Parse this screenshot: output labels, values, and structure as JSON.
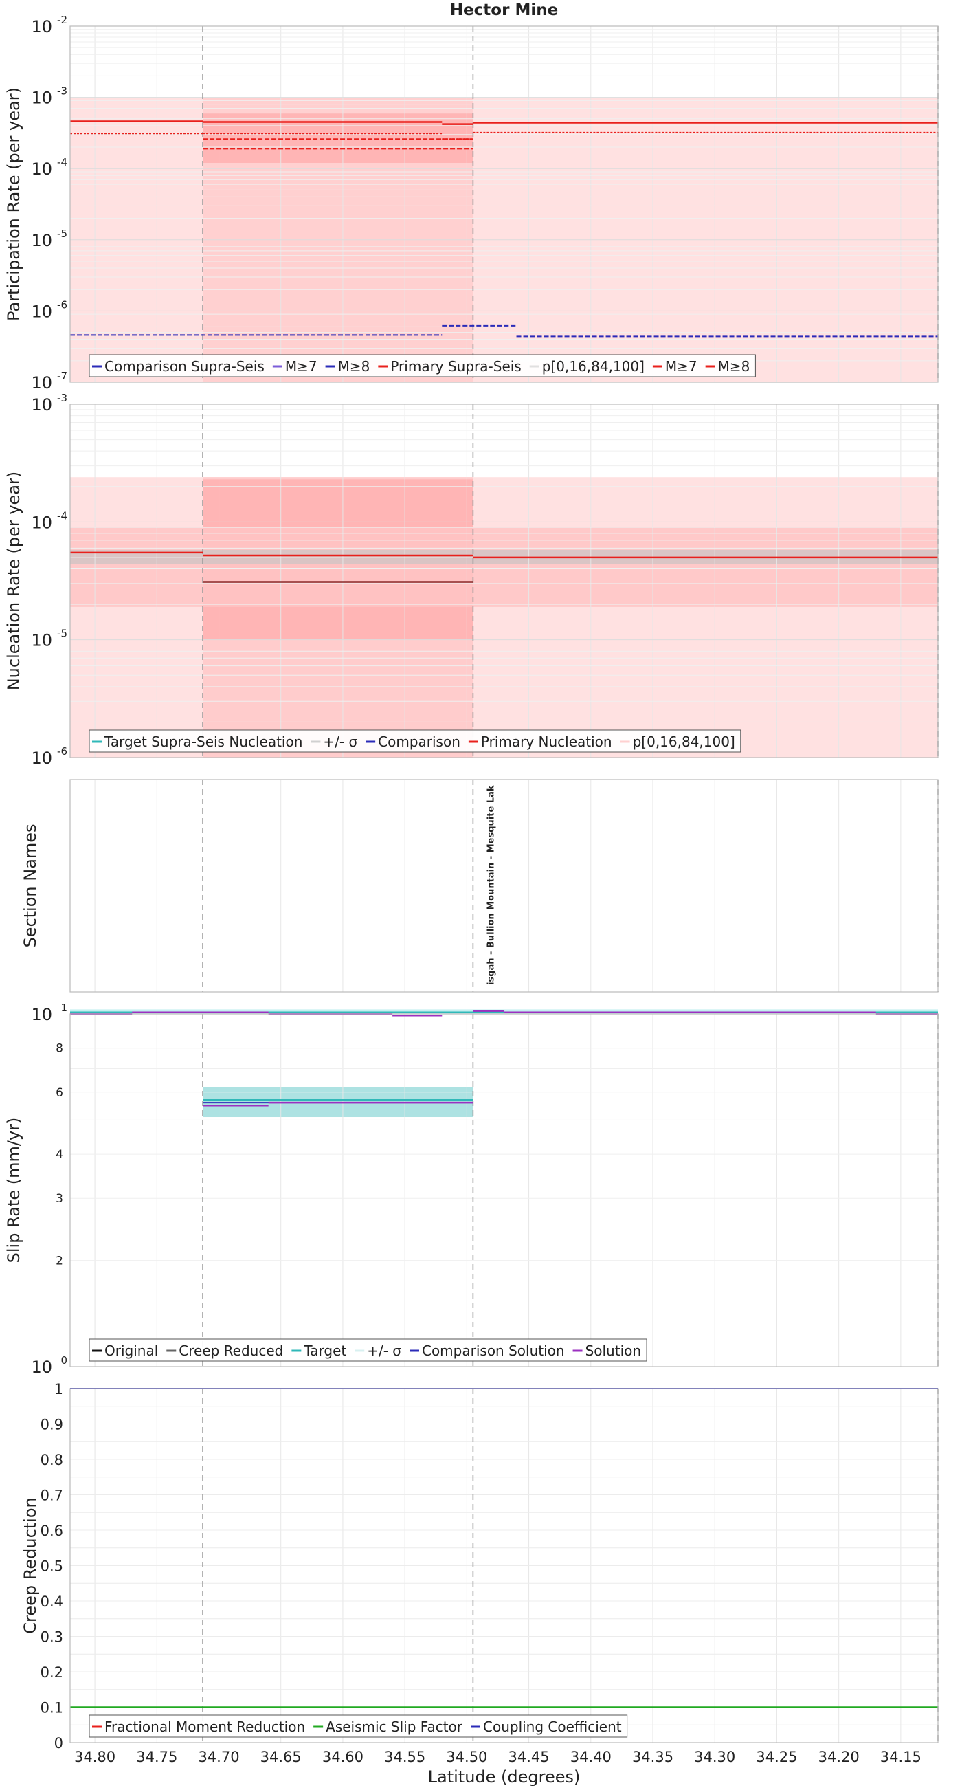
{
  "chart_data": {
    "type": "line",
    "title": "Hector Mine",
    "xlabel": "Latitude (degrees)",
    "xlim": [
      34.82,
      34.12
    ],
    "xticks": [
      34.8,
      34.75,
      34.7,
      34.65,
      34.6,
      34.55,
      34.5,
      34.45,
      34.4,
      34.35,
      34.3,
      34.25,
      34.2,
      34.15
    ],
    "section_boundaries": [
      34.713,
      34.495,
      34.12
    ],
    "panels": [
      {
        "id": "participation",
        "ylabel": "Participation Rate (per year)",
        "scale": "log",
        "ylim": [
          1e-07,
          0.01
        ],
        "yticks": [
          {
            "base": "10",
            "exp": "-7"
          },
          {
            "base": "10",
            "exp": "-6"
          },
          {
            "base": "10",
            "exp": "-5"
          },
          {
            "base": "10",
            "exp": "-4"
          },
          {
            "base": "10",
            "exp": "-3"
          },
          {
            "base": "10",
            "exp": "-2"
          }
        ],
        "bands": [
          {
            "x0": 34.82,
            "x1": 34.713,
            "lo": 1e-07,
            "hi": 0.001,
            "color": "#ffdcdc"
          },
          {
            "x0": 34.713,
            "x1": 34.495,
            "lo": 1e-07,
            "hi": 0.001,
            "color": "#ffc8c8"
          },
          {
            "x0": 34.713,
            "x1": 34.495,
            "lo": 0.00012,
            "hi": 0.0006,
            "color": "#ffb0b0"
          },
          {
            "x0": 34.495,
            "x1": 34.12,
            "lo": 1e-07,
            "hi": 0.001,
            "color": "#ffdcdc"
          }
        ],
        "series": [
          {
            "name": "Primary Supra-Seis",
            "color": "#e8201c",
            "width": 2.5,
            "dash": "",
            "segments": [
              {
                "x0": 34.82,
                "x1": 34.713,
                "y": 0.00046
              },
              {
                "x0": 34.713,
                "x1": 34.52,
                "y": 0.00045
              },
              {
                "x0": 34.52,
                "x1": 34.495,
                "y": 0.00042
              },
              {
                "x0": 34.495,
                "x1": 34.12,
                "y": 0.00044
              }
            ]
          },
          {
            "name": "M≥7",
            "color": "#e8201c",
            "width": 2,
            "dash": "3,2",
            "segments": [
              {
                "x0": 34.82,
                "x1": 34.713,
                "y": 0.00031
              },
              {
                "x0": 34.713,
                "x1": 34.52,
                "y": 0.00031
              },
              {
                "x0": 34.52,
                "x1": 34.495,
                "y": 0.00026
              },
              {
                "x0": 34.495,
                "x1": 34.12,
                "y": 0.00032
              }
            ]
          },
          {
            "name": "M≥8",
            "color": "#e8201c",
            "width": 2,
            "dash": "7,3",
            "segments": [
              {
                "x0": 34.713,
                "x1": 34.495,
                "y": 0.00026
              },
              {
                "x0": 34.713,
                "x1": 34.495,
                "y": 0.00019
              }
            ]
          },
          {
            "name": "Comparison Supra-Seis",
            "color": "#2b2bb8",
            "width": 2,
            "dash": "7,3",
            "segments": [
              {
                "x0": 34.82,
                "x1": 34.52,
                "y": 4.6e-07
              },
              {
                "x0": 34.52,
                "x1": 34.46,
                "y": 6.2e-07
              },
              {
                "x0": 34.46,
                "x1": 34.12,
                "y": 4.4e-07
              }
            ]
          }
        ],
        "legend": [
          "Comparison Supra-Seis",
          "M≥7",
          "M≥8",
          "Primary Supra-Seis",
          "p[0,16,84,100]",
          "M≥7",
          "M≥8"
        ]
      },
      {
        "id": "nucleation",
        "ylabel": "Nucleation Rate (per year)",
        "scale": "log",
        "ylim": [
          1e-06,
          0.001
        ],
        "yticks": [
          {
            "base": "10",
            "exp": "-6"
          },
          {
            "base": "10",
            "exp": "-5"
          },
          {
            "base": "10",
            "exp": "-4"
          },
          {
            "base": "10",
            "exp": "-3"
          }
        ],
        "bands": [
          {
            "x0": 34.82,
            "x1": 34.12,
            "lo": 1e-06,
            "hi": 0.00024,
            "color": "#ffdcdc"
          },
          {
            "x0": 34.713,
            "x1": 34.495,
            "lo": 1e-06,
            "hi": 0.00024,
            "color": "#ffc8c8"
          },
          {
            "x0": 34.713,
            "x1": 34.495,
            "lo": 1e-05,
            "hi": 0.00023,
            "color": "#ffb0b0"
          },
          {
            "x0": 34.82,
            "x1": 34.12,
            "lo": 1.9e-05,
            "hi": 9e-05,
            "color": "#ffc4c4"
          },
          {
            "x0": 34.82,
            "x1": 34.12,
            "lo": 4.4e-05,
            "hi": 5.8e-05,
            "color": "#d4c4c4"
          }
        ],
        "series": [
          {
            "name": "Primary Nucleation",
            "color": "#e8201c",
            "width": 2.5,
            "dash": "",
            "segments": [
              {
                "x0": 34.82,
                "x1": 34.713,
                "y": 5.5e-05
              },
              {
                "x0": 34.713,
                "x1": 34.495,
                "y": 5.2e-05
              },
              {
                "x0": 34.495,
                "x1": 34.12,
                "y": 5e-05
              }
            ]
          },
          {
            "name": "Comparison",
            "color": "#8a2a2a",
            "width": 2.5,
            "dash": "",
            "segments": [
              {
                "x0": 34.713,
                "x1": 34.495,
                "y": 3.1e-05
              }
            ]
          }
        ],
        "legend": [
          "Target Supra-Seis Nucleation",
          "+/- σ",
          "Comparison",
          "Primary Nucleation",
          "p[0,16,84,100]"
        ]
      },
      {
        "id": "sections",
        "ylabel": "Section Names",
        "section_label": "Pisgah - Bullion Mountain - Mesquite Lake",
        "section_label_visible": "isgah - Bullion Mountain - Mesquite Lak"
      },
      {
        "id": "slip",
        "ylabel": "Slip Rate (mm/yr)",
        "scale": "log",
        "ylim": [
          1,
          10
        ],
        "yticks": [
          {
            "base": "10",
            "exp": "0"
          },
          {
            "base": "10",
            "exp": "1"
          }
        ],
        "minor_ticks": [
          "2",
          "3",
          "4",
          "6",
          "8"
        ],
        "bands": [
          {
            "x0": 34.82,
            "x1": 34.12,
            "lo": 10.0,
            "hi": 10.3,
            "color": "#b9ecec"
          },
          {
            "x0": 34.713,
            "x1": 34.495,
            "lo": 5.1,
            "hi": 6.2,
            "color": "#9fdddd"
          }
        ],
        "series": [
          {
            "name": "Target",
            "color": "#2fb8b8",
            "width": 2.5,
            "dash": "",
            "segments": [
              {
                "x0": 34.82,
                "x1": 34.12,
                "y": 10.1
              },
              {
                "x0": 34.713,
                "x1": 34.495,
                "y": 5.7
              }
            ]
          },
          {
            "name": "Comparison Solution",
            "color": "#2b2bb8",
            "width": 2,
            "dash": "",
            "segments": [
              {
                "x0": 34.713,
                "x1": 34.495,
                "y": 5.6
              }
            ]
          },
          {
            "name": "Solution",
            "color": "#9b30c0",
            "width": 2.5,
            "dash": "",
            "segments": [
              {
                "x0": 34.82,
                "x1": 34.77,
                "y": 10.0
              },
              {
                "x0": 34.77,
                "x1": 34.713,
                "y": 10.1
              },
              {
                "x0": 34.713,
                "x1": 34.66,
                "y": 5.5
              },
              {
                "x0": 34.66,
                "x1": 34.495,
                "y": 5.6
              },
              {
                "x0": 34.72,
                "x1": 34.66,
                "y": 10.1
              },
              {
                "x0": 34.66,
                "x1": 34.56,
                "y": 10.0
              },
              {
                "x0": 34.56,
                "x1": 34.52,
                "y": 9.9
              },
              {
                "x0": 34.495,
                "x1": 34.47,
                "y": 10.2
              },
              {
                "x0": 34.47,
                "x1": 34.17,
                "y": 10.1
              },
              {
                "x0": 34.17,
                "x1": 34.12,
                "y": 10.0
              }
            ]
          }
        ],
        "legend": [
          "Original",
          "Creep Reduced",
          "Target",
          "+/- σ",
          "Comparison Solution",
          "Solution"
        ]
      },
      {
        "id": "creep",
        "ylabel": "Creep Reduction",
        "scale": "linear",
        "ylim": [
          0,
          1
        ],
        "yticks": [
          "0",
          "0.1",
          "0.2",
          "0.3",
          "0.4",
          "0.5",
          "0.6",
          "0.7",
          "0.8",
          "0.9",
          "1"
        ],
        "series": [
          {
            "name": "Coupling Coefficient",
            "color": "#2b2bb8",
            "width": 2,
            "dash": "",
            "segments": [
              {
                "x0": 34.82,
                "x1": 34.12,
                "y": 1.0
              }
            ]
          },
          {
            "name": "Aseismic Slip Factor",
            "color": "#22aa22",
            "width": 2.5,
            "dash": "",
            "segments": [
              {
                "x0": 34.82,
                "x1": 34.12,
                "y": 0.1
              }
            ]
          },
          {
            "name": "Fractional Moment Reduction",
            "color": "#e8201c",
            "width": 2,
            "dash": "",
            "segments": []
          }
        ],
        "legend": [
          "Fractional Moment Reduction",
          "Aseismic Slip Factor",
          "Coupling Coefficient"
        ]
      }
    ]
  },
  "legend_colors": {
    "participation": [
      "#2b2bb8",
      "#7b5bd8",
      "#2b2bb8",
      "#e8201c",
      "#e0e0e0",
      "#e8201c",
      "#e8201c"
    ],
    "nucleation": [
      "#2fb8b8",
      "#d0d0d0",
      "#2b2bb8",
      "#e8201c",
      "#ffd0d0"
    ],
    "slip": [
      "#111111",
      "#666666",
      "#2fb8b8",
      "#d8f0f0",
      "#2b2bb8",
      "#9b30c0"
    ],
    "creep": [
      "#e8201c",
      "#22aa22",
      "#2b2bb8"
    ]
  }
}
